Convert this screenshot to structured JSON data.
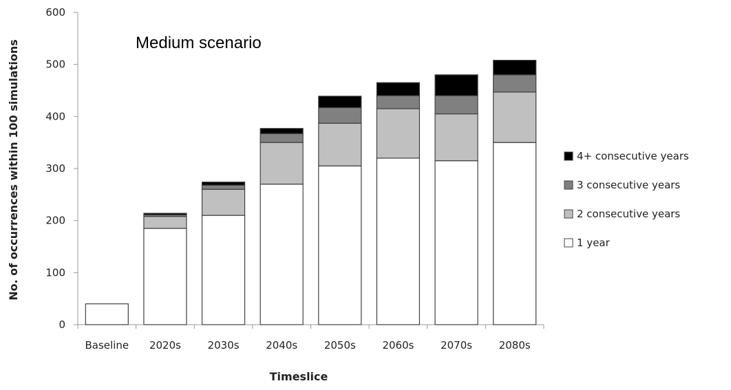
{
  "chart_data": {
    "type": "bar",
    "stacked": true,
    "annotation": "Medium scenario",
    "xlabel": "Timeslice",
    "ylabel": "No. of occurrences within 100 simulations",
    "ylim": [
      0,
      600
    ],
    "yticks": [
      0,
      100,
      200,
      300,
      400,
      500,
      600
    ],
    "grid": false,
    "legend_position": "right",
    "categories": [
      "Baseline",
      "2020s",
      "2030s",
      "2040s",
      "2050s",
      "2060s",
      "2070s",
      "2080s"
    ],
    "series": [
      {
        "name": "1 year",
        "color": "#ffffff",
        "values": [
          40,
          185,
          210,
          270,
          305,
          320,
          315,
          350
        ]
      },
      {
        "name": "2 consecutive years",
        "color": "#c0c0c0",
        "values": [
          0,
          23,
          50,
          80,
          82,
          95,
          90,
          97
        ]
      },
      {
        "name": "3 consecutive years",
        "color": "#808080",
        "values": [
          0,
          3,
          8,
          17,
          30,
          25,
          35,
          33
        ]
      },
      {
        "name": "4+ consecutive years",
        "color": "#000000",
        "values": [
          0,
          3,
          6,
          10,
          22,
          25,
          40,
          28
        ]
      }
    ]
  }
}
